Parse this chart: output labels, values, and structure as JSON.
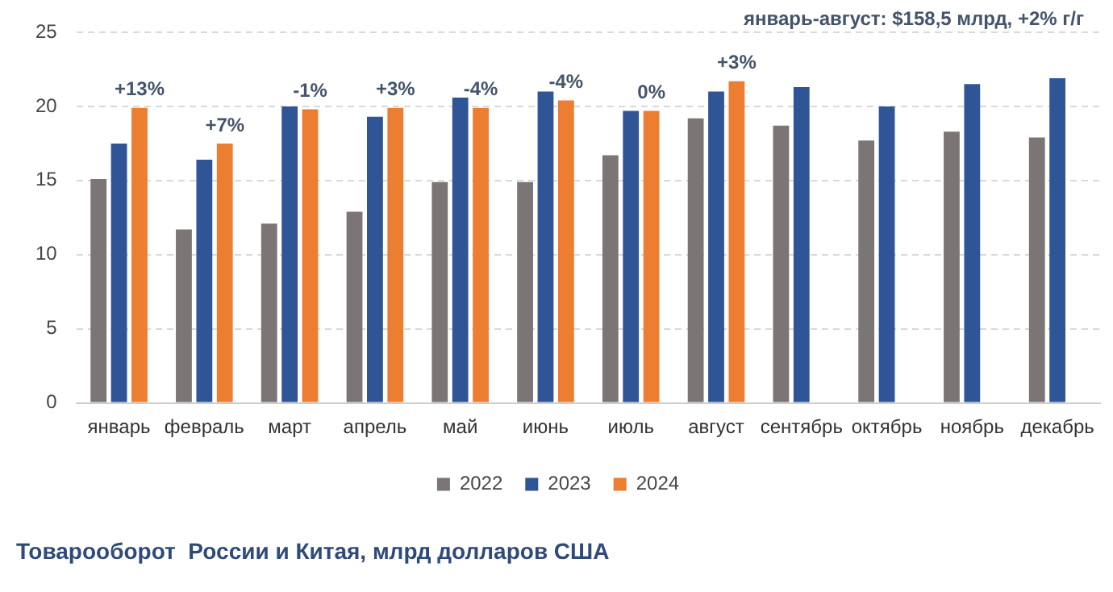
{
  "chart_data": {
    "type": "bar",
    "title": "Товарооборот  России и Китая, млрд долларов США",
    "annotations": [
      "январь-август: $158,5 млрд, +2% г/г",
      "+13%",
      "+7%",
      "-1%",
      "+3%",
      "-4%",
      "-4%",
      "0%",
      "+3%"
    ],
    "categories": [
      "январь",
      "февраль",
      "март",
      "апрель",
      "май",
      "июнь",
      "июль",
      "август",
      "сентябрь",
      "октябрь",
      "ноябрь",
      "декабрь"
    ],
    "series": [
      {
        "name": "2022",
        "color": "#7b7575",
        "values": [
          15.1,
          11.7,
          12.1,
          12.9,
          14.9,
          14.9,
          16.7,
          19.2,
          18.7,
          17.7,
          18.3,
          17.9
        ]
      },
      {
        "name": "2023",
        "color": "#2f5597",
        "values": [
          17.5,
          16.4,
          20.0,
          19.3,
          20.6,
          21.0,
          19.7,
          21.0,
          21.3,
          20.0,
          21.5,
          21.9
        ]
      },
      {
        "name": "2024",
        "color": "#ed7d31",
        "values": [
          19.9,
          17.5,
          19.8,
          19.9,
          19.9,
          20.4,
          19.7,
          21.7,
          null,
          null,
          null,
          null
        ]
      }
    ],
    "ylim": [
      0,
      25
    ],
    "yticks": [
      0,
      5,
      10,
      15,
      20,
      25
    ],
    "grid": "y",
    "legend": "bottom"
  }
}
